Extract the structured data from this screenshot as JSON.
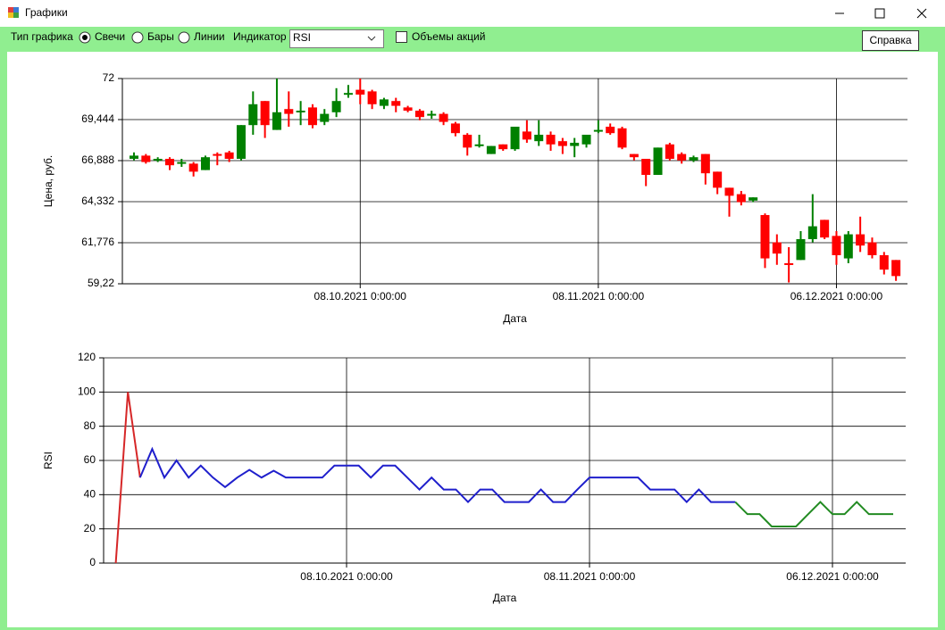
{
  "window": {
    "title": "Графики"
  },
  "toolbar": {
    "chart_type_label": "Тип графика",
    "chart_types": [
      {
        "label": "Свечи",
        "selected": true
      },
      {
        "label": "Бары",
        "selected": false
      },
      {
        "label": "Линии",
        "selected": false
      }
    ],
    "indicator_label": "Индикатор",
    "indicator": "RSI",
    "volumes": {
      "label": "Объемы акций",
      "checked": false
    },
    "help_button": "Справка"
  },
  "chart_data": [
    {
      "type": "candlestick",
      "ylabel": "Цена, руб.",
      "xlabel": "Дата",
      "categories": [
        null,
        null,
        null,
        null,
        null,
        null,
        null,
        null,
        null,
        null,
        null,
        null,
        null,
        null,
        null,
        null,
        null,
        null,
        null,
        "08.10.2021 0:00:00",
        null,
        null,
        null,
        null,
        null,
        null,
        null,
        null,
        null,
        null,
        null,
        null,
        null,
        null,
        null,
        null,
        null,
        null,
        null,
        "08.11.2021 0:00:00",
        null,
        null,
        null,
        null,
        null,
        null,
        null,
        null,
        null,
        null,
        null,
        null,
        null,
        null,
        null,
        null,
        null,
        null,
        null,
        "06.12.2021 0:00:00",
        null,
        null,
        null,
        null,
        null
      ],
      "open": [
        67.0,
        67.2,
        66.9,
        67.0,
        66.7,
        66.7,
        66.3,
        67.3,
        67.4,
        67.0,
        69.1,
        70.6,
        68.8,
        70.1,
        69.9,
        70.2,
        69.3,
        69.9,
        71.0,
        71.3,
        71.2,
        70.3,
        70.6,
        70.2,
        70.0,
        69.7,
        69.8,
        69.2,
        68.5,
        67.8,
        67.3,
        67.9,
        67.6,
        68.7,
        68.1,
        68.5,
        68.1,
        67.8,
        67.9,
        68.7,
        69.0,
        68.9,
        67.3,
        67.0,
        66.0,
        67.9,
        67.3,
        66.9,
        67.3,
        66.2,
        65.2,
        64.8,
        64.4,
        63.5,
        61.8,
        60.5,
        60.7,
        62.0,
        63.2,
        62.2,
        60.8,
        62.3,
        61.8,
        61.0,
        60.7
      ],
      "high": [
        67.4,
        67.3,
        67.1,
        67.1,
        67.0,
        66.8,
        67.2,
        67.4,
        67.5,
        69.1,
        71.2,
        70.6,
        72.0,
        71.2,
        70.6,
        70.4,
        70.1,
        71.4,
        71.6,
        72.0,
        71.3,
        70.8,
        70.8,
        70.3,
        70.1,
        70.0,
        69.9,
        69.3,
        68.6,
        68.5,
        67.8,
        67.9,
        69.0,
        69.4,
        69.4,
        68.7,
        68.3,
        68.3,
        68.5,
        69.4,
        69.2,
        69.0,
        67.3,
        67.0,
        67.7,
        68.0,
        67.4,
        67.2,
        67.3,
        66.2,
        65.2,
        65.0,
        64.6,
        63.6,
        62.3,
        61.5,
        62.5,
        64.8,
        63.2,
        62.5,
        62.5,
        63.4,
        62.1,
        61.2,
        60.7
      ],
      "low": [
        66.9,
        66.7,
        66.8,
        66.3,
        66.5,
        65.9,
        66.3,
        66.6,
        66.8,
        66.9,
        68.5,
        68.3,
        68.8,
        69.0,
        69.1,
        68.9,
        69.1,
        69.6,
        70.8,
        70.4,
        70.1,
        70.1,
        69.9,
        69.9,
        69.4,
        69.5,
        69.1,
        68.4,
        67.2,
        67.7,
        67.3,
        67.5,
        67.5,
        68.0,
        67.8,
        67.5,
        67.3,
        67.1,
        67.7,
        68.6,
        68.5,
        67.6,
        66.9,
        65.3,
        66.0,
        66.9,
        66.7,
        66.8,
        65.4,
        64.8,
        63.4,
        64.1,
        64.3,
        60.2,
        60.4,
        59.3,
        60.7,
        61.8,
        62.0,
        60.4,
        60.5,
        61.2,
        60.8,
        59.8,
        59.4
      ],
      "close": [
        67.2,
        66.8,
        67.0,
        66.6,
        66.8,
        66.2,
        67.1,
        67.2,
        67.0,
        69.1,
        70.4,
        69.1,
        69.9,
        69.8,
        70.0,
        69.1,
        69.8,
        70.6,
        71.1,
        71.0,
        70.4,
        70.7,
        70.3,
        70.0,
        69.6,
        69.8,
        69.3,
        68.6,
        67.7,
        67.9,
        67.8,
        67.6,
        69.0,
        68.2,
        68.5,
        67.9,
        67.8,
        68.0,
        68.5,
        68.8,
        68.6,
        67.7,
        67.1,
        66.0,
        67.7,
        67.0,
        66.9,
        67.1,
        66.1,
        65.2,
        64.7,
        64.3,
        64.6,
        60.8,
        61.1,
        60.4,
        62.0,
        62.8,
        62.1,
        61.0,
        62.3,
        61.6,
        61.0,
        60.1,
        59.7
      ],
      "up_color": "#008000",
      "down_color": "#ff0000",
      "ylim": [
        59.22,
        72
      ],
      "yticks": [
        {
          "value": 59.22,
          "label": "59,22"
        },
        {
          "value": 61.776,
          "label": "61,776"
        },
        {
          "value": 64.332,
          "label": "64,332"
        },
        {
          "value": 66.888,
          "label": "66,888"
        },
        {
          "value": 69.444,
          "label": "69,444"
        },
        72
      ],
      "grid": true
    },
    {
      "type": "line",
      "ylabel": "RSI",
      "xlabel": "Дата",
      "categories": [
        null,
        null,
        null,
        null,
        null,
        null,
        null,
        null,
        null,
        null,
        null,
        null,
        null,
        null,
        null,
        null,
        null,
        null,
        null,
        "08.10.2021 0:00:00",
        null,
        null,
        null,
        null,
        null,
        null,
        null,
        null,
        null,
        null,
        null,
        null,
        null,
        null,
        null,
        null,
        null,
        null,
        null,
        "08.11.2021 0:00:00",
        null,
        null,
        null,
        null,
        null,
        null,
        null,
        null,
        null,
        null,
        null,
        null,
        null,
        null,
        null,
        null,
        null,
        null,
        null,
        "06.12.2021 0:00:00",
        null,
        null,
        null,
        null,
        null
      ],
      "series": [
        {
          "color": "#d62728",
          "values": [
            0,
            100,
            50,
            null,
            null,
            null,
            null,
            null,
            null,
            null,
            null,
            null,
            null,
            null,
            null,
            null,
            null,
            null,
            null,
            null,
            null,
            null,
            null,
            null,
            null,
            null,
            null,
            null,
            null,
            null,
            null,
            null,
            null,
            null,
            null,
            null,
            null,
            null,
            null,
            null,
            null,
            null,
            null,
            null,
            null,
            null,
            null,
            null,
            null,
            null,
            null,
            null,
            null,
            null,
            null,
            null,
            null,
            null,
            null,
            null,
            null,
            null,
            null,
            null,
            null
          ]
        },
        {
          "color": "#1f1fcc",
          "values": [
            null,
            null,
            50,
            66.7,
            50,
            60,
            50,
            57,
            50,
            44.4,
            50,
            54.5,
            50,
            54,
            50,
            50,
            50,
            50,
            57,
            57,
            57,
            50,
            57,
            57,
            50,
            43,
            50,
            43,
            43,
            35.7,
            43,
            43,
            35.7,
            35.7,
            35.7,
            43,
            35.7,
            35.7,
            43,
            50,
            50,
            50,
            50,
            50,
            43,
            43,
            43,
            35.7,
            43,
            35.7,
            35.7,
            35.7,
            null,
            null,
            null,
            null,
            null,
            null,
            null,
            null,
            null,
            null,
            null,
            null,
            null
          ]
        },
        {
          "color": "#228b22",
          "values": [
            null,
            null,
            null,
            null,
            null,
            null,
            null,
            null,
            null,
            null,
            null,
            null,
            null,
            null,
            null,
            null,
            null,
            null,
            null,
            null,
            null,
            null,
            null,
            null,
            null,
            null,
            null,
            null,
            null,
            null,
            null,
            null,
            null,
            null,
            null,
            null,
            null,
            null,
            null,
            null,
            null,
            null,
            null,
            null,
            null,
            null,
            null,
            null,
            null,
            null,
            null,
            35.7,
            28.6,
            28.6,
            21.4,
            21.4,
            21.4,
            28.6,
            35.7,
            28.6,
            28.6,
            35.7,
            28.6,
            28.6,
            28.6
          ]
        }
      ],
      "ylim": [
        0,
        120
      ],
      "yticks": [
        0,
        20,
        40,
        60,
        80,
        100,
        120
      ],
      "grid": true
    }
  ]
}
